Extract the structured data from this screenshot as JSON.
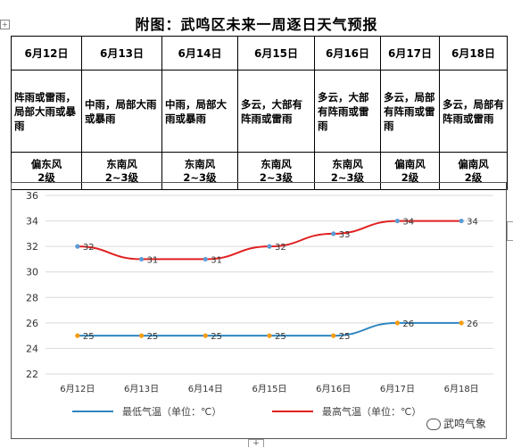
{
  "title": "附图：武鸣区未来一周逐日天气预报",
  "days": [
    {
      "date": "6月12日",
      "weather": "阵雨或雷雨，局部大雨或暴雨",
      "wind": "偏东风",
      "level": "2级"
    },
    {
      "date": "6月13日",
      "weather": "中雨，局部大雨或暴雨",
      "wind": "东南风",
      "level": "2~3级"
    },
    {
      "date": "6月14日",
      "weather": "中雨，局部大雨或暴雨",
      "wind": "东南风",
      "level": "2~3级"
    },
    {
      "date": "6月15日",
      "weather": "多云，大部有阵雨或雷雨",
      "wind": "东南风",
      "level": "2~3级"
    },
    {
      "date": "6月16日",
      "weather": "多云，大部有阵雨或雷雨",
      "wind": "东南风",
      "level": "2~3级"
    },
    {
      "date": "6月17日",
      "weather": "多云，局部有阵雨或雷雨",
      "wind": "偏南风",
      "level": "2级"
    },
    {
      "date": "6月18日",
      "weather": "多云，局部有阵雨或雷雨",
      "wind": "偏南风",
      "level": "2级"
    }
  ],
  "watermark": "武鸣气象",
  "chart_data": {
    "type": "line",
    "categories": [
      "6月12日",
      "6月13日",
      "6月14日",
      "6月15日",
      "6月16日",
      "6月17日",
      "6月18日"
    ],
    "ylim": [
      22,
      36
    ],
    "yticks": [
      22,
      24,
      26,
      28,
      30,
      32,
      34,
      36
    ],
    "grid": true,
    "legend_position": "bottom",
    "series": [
      {
        "name": "最低气温（单位：℃）",
        "color": "#2e86c1",
        "marker_color": "#f39c12",
        "values": [
          25,
          25,
          25,
          25,
          25,
          26,
          26
        ]
      },
      {
        "name": "最高气温（单位：℃）",
        "color": "#e02020",
        "marker_color": "#5b9bd5",
        "values": [
          32,
          31,
          31,
          32,
          33,
          34,
          34
        ]
      }
    ]
  }
}
